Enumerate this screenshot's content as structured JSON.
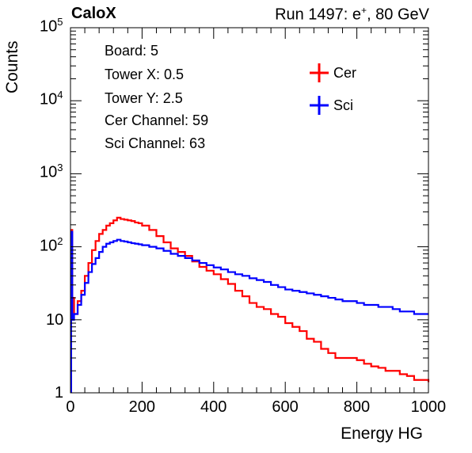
{
  "header": {
    "experiment": "CaloX",
    "run_prefix": "Run 1497: e",
    "run_superscript": "+",
    "run_suffix": ", 80 GeV"
  },
  "info_box": [
    "Board: 5",
    "Tower X: 0.5",
    "Tower Y: 2.5",
    "Cer Channel: 59",
    "Sci Channel: 63"
  ],
  "colors": {
    "cer": "#ff0000",
    "sci": "#0000ff"
  },
  "chart_data": {
    "type": "line",
    "title": "",
    "xlabel": "Energy HG",
    "ylabel": "Counts",
    "xlim": [
      0,
      1000
    ],
    "ylim": [
      1,
      100000
    ],
    "yscale": "log",
    "x_ticks": [
      "0",
      "200",
      "400",
      "600",
      "800",
      "1000"
    ],
    "y_ticks": [
      {
        "base": "1",
        "exp": ""
      },
      {
        "base": "10",
        "exp": ""
      },
      {
        "base": "10",
        "exp": "2"
      },
      {
        "base": "10",
        "exp": "3"
      },
      {
        "base": "10",
        "exp": "4"
      },
      {
        "base": "10",
        "exp": "5"
      }
    ],
    "legend": {
      "position": "top-right"
    },
    "series": [
      {
        "name": "Cer",
        "color": "#ff0000",
        "x": [
          2,
          5,
          10,
          20,
          30,
          40,
          50,
          60,
          70,
          80,
          90,
          100,
          110,
          120,
          130,
          140,
          150,
          160,
          170,
          180,
          190,
          200,
          220,
          240,
          260,
          280,
          300,
          320,
          340,
          360,
          380,
          400,
          420,
          440,
          460,
          480,
          500,
          520,
          540,
          560,
          580,
          600,
          620,
          640,
          660,
          680,
          700,
          720,
          740,
          760,
          780,
          800,
          820,
          840,
          860,
          880,
          900,
          920,
          940,
          960,
          980,
          1000
        ],
        "y": [
          170,
          20,
          12,
          18,
          25,
          40,
          60,
          90,
          120,
          150,
          170,
          195,
          210,
          230,
          250,
          240,
          235,
          230,
          225,
          215,
          210,
          195,
          170,
          140,
          115,
          95,
          85,
          75,
          63,
          53,
          47,
          42,
          36,
          31,
          25,
          21,
          17,
          15,
          14,
          12,
          11,
          9,
          8,
          7,
          5.5,
          5,
          4,
          3.5,
          3,
          3,
          3,
          2.8,
          2.5,
          2.3,
          2.2,
          2,
          2,
          1.8,
          1.7,
          1.5,
          1.5,
          1.4
        ]
      },
      {
        "name": "Sci",
        "color": "#0000ff",
        "x": [
          2,
          5,
          10,
          20,
          30,
          40,
          50,
          60,
          70,
          80,
          90,
          100,
          110,
          120,
          130,
          140,
          150,
          160,
          170,
          180,
          190,
          200,
          220,
          240,
          260,
          280,
          300,
          320,
          340,
          360,
          380,
          400,
          420,
          440,
          460,
          480,
          500,
          520,
          540,
          560,
          580,
          600,
          620,
          640,
          660,
          680,
          700,
          720,
          740,
          760,
          780,
          800,
          820,
          840,
          860,
          880,
          900,
          920,
          940,
          960,
          980,
          1000
        ],
        "y": [
          160,
          10,
          12,
          16,
          22,
          32,
          45,
          58,
          70,
          85,
          100,
          110,
          115,
          120,
          125,
          120,
          118,
          115,
          112,
          110,
          108,
          105,
          100,
          95,
          88,
          80,
          75,
          70,
          65,
          60,
          56,
          52,
          49,
          45,
          42,
          40,
          37,
          35,
          33,
          30,
          28,
          26,
          25,
          24,
          23,
          22,
          21,
          20,
          19,
          18,
          18,
          17,
          16,
          16,
          15,
          15,
          14,
          13,
          13,
          12,
          12,
          12
        ]
      }
    ]
  }
}
